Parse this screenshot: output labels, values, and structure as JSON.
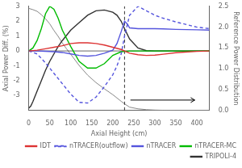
{
  "chart_data": {
    "type": "line",
    "xlabel": "Axial Height (cm)",
    "ylabel": "Axial Power Diff. (%)",
    "y2label": "Reference Power Distribution",
    "xlim": [
      0,
      430
    ],
    "xticks": [
      0,
      50,
      100,
      150,
      200,
      250,
      300,
      350,
      400
    ],
    "ylim": [
      -4,
      3
    ],
    "yticks": [
      -3,
      -2,
      -1,
      0,
      1,
      2,
      3
    ],
    "y2lim": [
      0,
      2.5
    ],
    "y2ticks": [
      {
        "value": 0,
        "label": "0.0"
      },
      0.5,
      {
        "value": 1.0,
        "label": "1.0"
      },
      1.5,
      {
        "value": 2.0,
        "label": "2.0"
      },
      2.5
    ],
    "grid": false,
    "legend": "lower right",
    "series": [
      {
        "axis": "y2",
        "color": "#888888",
        "line_style": "solid",
        "x": [
          0,
          10,
          20,
          30,
          40,
          50,
          60,
          70,
          80,
          90,
          100,
          120,
          140,
          160,
          180,
          200,
          220,
          228,
          240,
          260,
          280,
          300,
          320,
          350,
          400,
          430
        ],
        "values": [
          2.45,
          2.42,
          2.38,
          2.3,
          2.2,
          2.08,
          1.92,
          1.78,
          1.62,
          1.48,
          1.35,
          1.08,
          0.85,
          0.67,
          0.52,
          0.38,
          0.22,
          0.16,
          0.08,
          0.04,
          0.02,
          0.01,
          0.005,
          0.002,
          0.001,
          0.0
        ]
      },
      {
        "name": "TRIPOLI-4",
        "color": "#333333",
        "line_style": "solid",
        "x": [
          0,
          5,
          10,
          20,
          30,
          40,
          50,
          60,
          70,
          80,
          100,
          120,
          140,
          160,
          180,
          200,
          210,
          220,
          228,
          240,
          260,
          280,
          300,
          350,
          400,
          430
        ],
        "values": [
          -3.85,
          -3.7,
          -3.4,
          -2.7,
          -2.0,
          -1.3,
          -0.7,
          -0.2,
          0.3,
          0.7,
          1.4,
          1.9,
          2.4,
          2.7,
          2.75,
          2.6,
          2.4,
          2.0,
          1.5,
          0.8,
          0.2,
          0.02,
          0.0,
          0.0,
          0.0,
          0.0
        ]
      },
      {
        "name": "nTRACER-MC",
        "color": "#00bb00",
        "line_style": "solid",
        "x": [
          0,
          10,
          20,
          30,
          40,
          50,
          60,
          70,
          80,
          100,
          120,
          140,
          160,
          180,
          200,
          220,
          240,
          260,
          280,
          300,
          350,
          400,
          430
        ],
        "values": [
          0.0,
          0.2,
          0.7,
          1.5,
          2.5,
          3.0,
          2.8,
          2.2,
          1.4,
          0.3,
          -0.7,
          -1.15,
          -1.15,
          -0.85,
          -0.3,
          -0.05,
          0.0,
          0.0,
          0.0,
          0.0,
          0.0,
          0.0,
          0.0
        ]
      },
      {
        "name": "nTRACER",
        "color": "#5555dd",
        "line_style": "solid",
        "x": [
          0,
          20,
          40,
          60,
          80,
          100,
          120,
          140,
          160,
          180,
          200,
          210,
          220,
          228,
          235,
          240,
          260,
          280,
          300,
          320,
          350,
          400,
          430
        ],
        "values": [
          0.0,
          0.0,
          -0.02,
          -0.05,
          -0.1,
          -0.2,
          -0.3,
          -0.35,
          -0.3,
          -0.15,
          0.05,
          0.5,
          1.3,
          2.0,
          1.8,
          1.55,
          1.5,
          1.5,
          1.5,
          1.48,
          1.45,
          1.42,
          1.4
        ]
      },
      {
        "name": "nTRACER(outflow)",
        "color": "#5555dd",
        "line_style": "dashed",
        "x": [
          0,
          20,
          40,
          60,
          80,
          100,
          120,
          140,
          160,
          180,
          200,
          210,
          220,
          228,
          240,
          260,
          280,
          300,
          320,
          350,
          400,
          430
        ],
        "values": [
          0.0,
          -0.2,
          -0.8,
          -1.5,
          -2.2,
          -2.9,
          -3.45,
          -3.5,
          -3.1,
          -2.4,
          -1.6,
          -1.0,
          -0.2,
          1.0,
          2.4,
          3.0,
          2.7,
          2.4,
          2.2,
          1.95,
          1.6,
          1.5
        ]
      },
      {
        "name": "IDT",
        "color": "#dd3333",
        "line_style": "solid",
        "x": [
          0,
          20,
          40,
          60,
          80,
          100,
          120,
          140,
          160,
          180,
          200,
          220,
          228,
          240,
          260,
          280,
          300,
          320,
          350,
          400,
          430
        ],
        "values": [
          0.0,
          0.05,
          0.15,
          0.25,
          0.35,
          0.5,
          0.55,
          0.55,
          0.5,
          0.4,
          0.25,
          0.1,
          0.0,
          -0.15,
          -0.25,
          -0.3,
          -0.28,
          -0.22,
          -0.12,
          -0.03,
          0.0
        ]
      }
    ],
    "annotations": [
      {
        "type": "hline",
        "y": 0,
        "color": "#000000",
        "line_style": "solid"
      },
      {
        "type": "vline",
        "x": 228,
        "color": "#000000",
        "line_style": "dashed"
      },
      {
        "type": "arrow",
        "x1": 242,
        "x2": 395,
        "y": -3.3,
        "color": "#000000"
      }
    ]
  }
}
